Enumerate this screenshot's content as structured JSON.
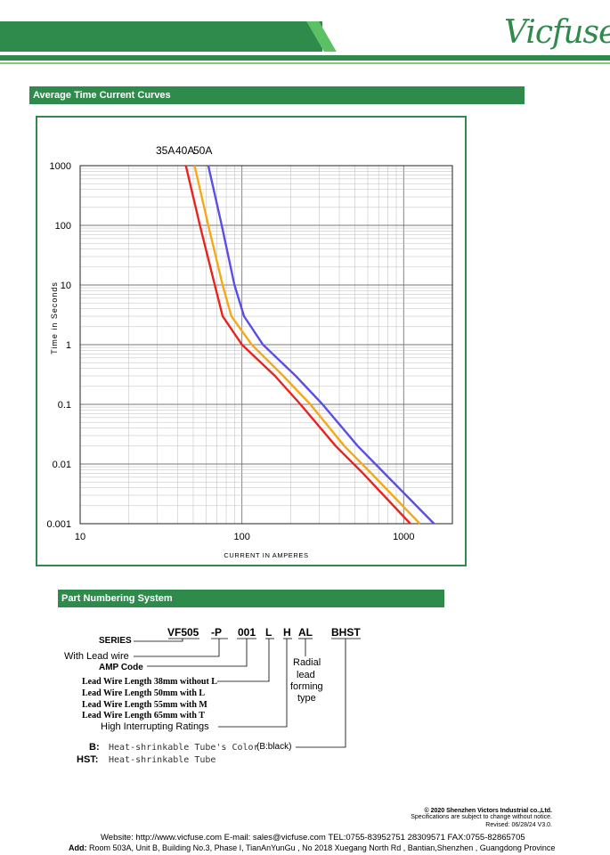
{
  "header": {
    "brand": "Vicfuse"
  },
  "sections": {
    "curves_title": "Average Time Current Curves",
    "pns_title": "Part Numbering System"
  },
  "chart_data": {
    "type": "line",
    "xlabel": "CURRENT IN AMPERES",
    "ylabel": "Time in Seconds",
    "x_scale": "log",
    "y_scale": "log",
    "xlim": [
      10,
      2000
    ],
    "ylim": [
      0.001,
      1000
    ],
    "x_ticks": [
      "10",
      "100",
      "1000"
    ],
    "y_ticks": [
      "1000",
      "100",
      "10",
      "1",
      "0.1",
      "0.01",
      "0.001"
    ],
    "grid": true,
    "legend": "top",
    "series": [
      {
        "name": "35A",
        "color": "#e8231c",
        "points": [
          [
            45,
            1000
          ],
          [
            55,
            100
          ],
          [
            68,
            10
          ],
          [
            76,
            3
          ],
          [
            100,
            1
          ],
          [
            160,
            0.3
          ],
          [
            230,
            0.1
          ],
          [
            380,
            0.02
          ],
          [
            560,
            0.007
          ],
          [
            1100,
            0.001
          ]
        ]
      },
      {
        "name": "40A",
        "color": "#f5a917",
        "points": [
          [
            51,
            1000
          ],
          [
            62,
            100
          ],
          [
            76,
            10
          ],
          [
            86,
            3
          ],
          [
            115,
            1
          ],
          [
            180,
            0.3
          ],
          [
            265,
            0.1
          ],
          [
            430,
            0.02
          ],
          [
            630,
            0.007
          ],
          [
            1260,
            0.001
          ]
        ]
      },
      {
        "name": "50A",
        "color": "#5b4ee8",
        "points": [
          [
            62,
            1000
          ],
          [
            75,
            100
          ],
          [
            90,
            10
          ],
          [
            103,
            3
          ],
          [
            135,
            1
          ],
          [
            215,
            0.3
          ],
          [
            315,
            0.1
          ],
          [
            520,
            0.02
          ],
          [
            760,
            0.007
          ],
          [
            1540,
            0.001
          ]
        ]
      }
    ]
  },
  "part_numbering": {
    "codes": {
      "series_code": "VF505",
      "lead_code": "-P",
      "amp_code": "001",
      "length_code": "L",
      "rating_code": "H",
      "forming_code": "AL",
      "tube_code": "BHST"
    },
    "labels": {
      "series": "SERIES",
      "lead_wire": "With Lead wire",
      "amp": "AMP Code",
      "len38": "Lead Wire Length 38mm without L",
      "len50": "Lead Wire Length 50mm with L",
      "len55": "Lead Wire Length 55mm with M",
      "len65": "Lead Wire Length 65mm with T",
      "rating": "High  Interrupting Ratings",
      "radial1": "Radial",
      "radial2": "lead",
      "radial3": "forming",
      "radial4": "type",
      "b_key": "B:",
      "b_desc": "Heat-shrinkable Tube's Color",
      "b_color": "(B:black)",
      "hst_key": "HST:",
      "hst_desc": "Heat-shrinkable Tube"
    }
  },
  "footer": {
    "copyright": "© 2020 Shenzhen Victors Industrial co.,Ltd.",
    "notice": "Specifications are subject to change without notice.",
    "revised": "Revised: 06/28/24   V3.0.",
    "website_line": "Website: http://www.vicfuse.com E-mail: sales@vicfuse.com TEL:0755-83952751 28309571  FAX:0755-82865705",
    "add_label": "Add:",
    "address": "Room 503A, Unit B, Building No.3, Phase I, TianAnYunGu , No 2018 Xuegang North Rd , Bantian,Shenzhen , Guangdong Province"
  }
}
